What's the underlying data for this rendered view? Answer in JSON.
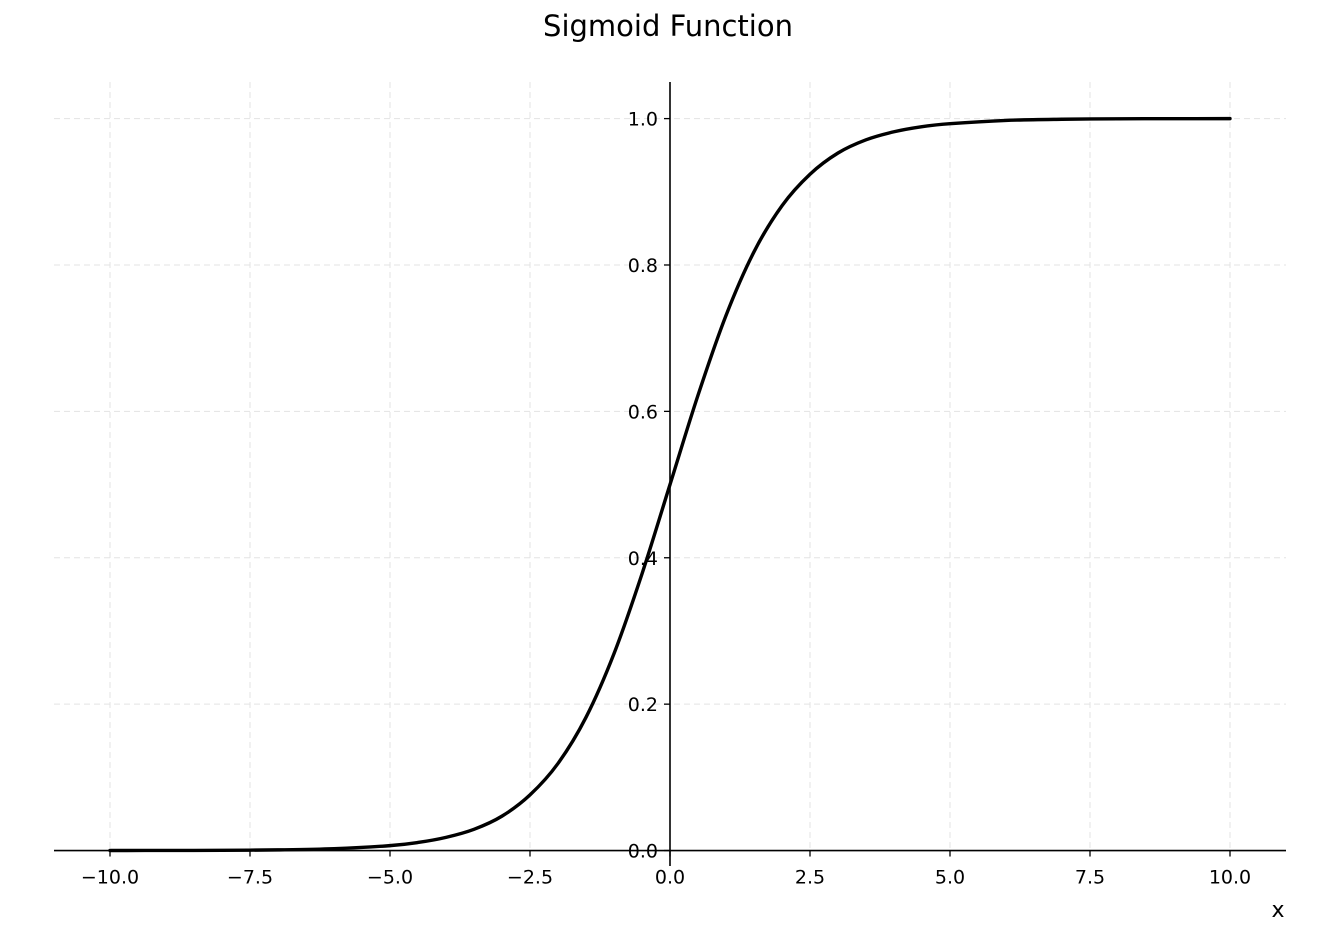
{
  "chart_data": {
    "type": "line",
    "title": "Sigmoid Function",
    "xlabel": "x",
    "ylabel": "",
    "xlim": [
      -11,
      11
    ],
    "ylim": [
      -0.002,
      1.05
    ],
    "grid": true,
    "x_ticks": [
      -10.0,
      -7.5,
      -5.0,
      -2.5,
      0.0,
      2.5,
      5.0,
      7.5,
      10.0
    ],
    "x_tick_labels": [
      "−10.0",
      "−7.5",
      "−5.0",
      "−2.5",
      "0.0",
      "2.5",
      "5.0",
      "7.5",
      "10.0"
    ],
    "y_ticks": [
      0.0,
      0.2,
      0.4,
      0.6,
      0.8,
      1.0
    ],
    "y_tick_labels": [
      "0.0",
      "0.2",
      "0.4",
      "0.6",
      "0.8",
      "1.0"
    ],
    "series": [
      {
        "color": "#000000",
        "x": [
          -10,
          -9,
          -8,
          -7,
          -6,
          -5,
          -4.5,
          -4,
          -3.5,
          -3,
          -2.5,
          -2,
          -1.5,
          -1,
          -0.5,
          0,
          0.5,
          1,
          1.5,
          2,
          2.5,
          3,
          3.5,
          4,
          4.5,
          5,
          6,
          7,
          8,
          9,
          10
        ],
        "y": [
          5e-05,
          0.0001,
          0.0003,
          0.0009,
          0.0025,
          0.0067,
          0.011,
          0.018,
          0.029,
          0.047,
          0.076,
          0.119,
          0.182,
          0.269,
          0.378,
          0.5,
          0.622,
          0.731,
          0.818,
          0.881,
          0.924,
          0.953,
          0.971,
          0.982,
          0.989,
          0.993,
          0.9975,
          0.9991,
          0.9997,
          0.9999,
          0.99995
        ]
      }
    ]
  }
}
